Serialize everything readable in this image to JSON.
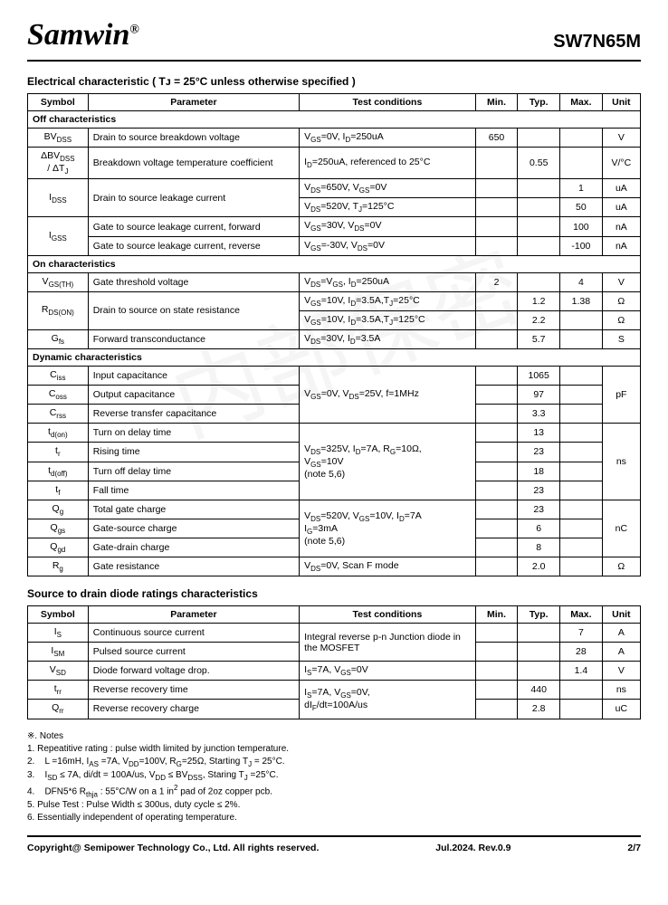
{
  "header": {
    "logo": "Samwin",
    "reg": "®",
    "partno": "SW7N65M"
  },
  "sec1_title": "Electrical characteristic ( Tᴊ = 25°C unless otherwise specified )",
  "cols1": [
    "Symbol",
    "Parameter",
    "Test conditions",
    "Min.",
    "Typ.",
    "Max.",
    "Unit"
  ],
  "off_hdr": "Off characteristics",
  "off": [
    {
      "sym": "BV_DSS",
      "param": "Drain to source breakdown voltage",
      "cond": "V_GS=0V, I_D=250uA",
      "min": "650",
      "typ": "",
      "max": "",
      "unit": "V"
    },
    {
      "sym": "ΔBV_DSS / ΔT_J",
      "param": "Breakdown voltage temperature coefficient",
      "cond": "I_D=250uA, referenced to 25°C",
      "min": "",
      "typ": "0.55",
      "max": "",
      "unit": "V/°C"
    },
    {
      "sym": "I_DSS",
      "param": "Drain to source leakage current",
      "cond": "V_DS=650V, V_GS=0V",
      "min": "",
      "typ": "",
      "max": "1",
      "unit": "uA",
      "rowspan": 2
    },
    {
      "cond": "V_DS=520V, T_J=125°C",
      "min": "",
      "typ": "",
      "max": "50",
      "unit": "uA"
    },
    {
      "sym": "I_GSS",
      "param": "Gate to source leakage current, forward",
      "cond": "V_GS=30V, V_DS=0V",
      "min": "",
      "typ": "",
      "max": "100",
      "unit": "nA",
      "symrowspan": 2
    },
    {
      "param": "Gate to source leakage current, reverse",
      "cond": "V_GS=-30V, V_DS=0V",
      "min": "",
      "typ": "",
      "max": "-100",
      "unit": "nA"
    }
  ],
  "on_hdr": "On characteristics",
  "on": [
    {
      "sym": "V_GS(TH)",
      "param": "Gate threshold voltage",
      "cond": "V_DS=V_GS, I_D=250uA",
      "min": "2",
      "typ": "",
      "max": "4",
      "unit": "V"
    },
    {
      "sym": "R_DS(ON)",
      "param": "Drain to source on state resistance",
      "cond": "V_GS=10V, I_D=3.5A,T_J=25°C",
      "min": "",
      "typ": "1.2",
      "max": "1.38",
      "unit": "Ω",
      "rowspan": 2
    },
    {
      "cond": "V_GS=10V, I_D=3.5A,T_J=125°C",
      "min": "",
      "typ": "2.2",
      "max": "",
      "unit": "Ω"
    },
    {
      "sym": "G_fs",
      "param": "Forward transconductance",
      "cond": "V_DS=30V, I_D=3.5A",
      "min": "",
      "typ": "5.7",
      "max": "",
      "unit": "S"
    }
  ],
  "dyn_hdr": "Dynamic characteristics",
  "dyn": [
    {
      "sym": "C_iss",
      "param": "Input capacitance",
      "cond": "V_GS=0V, V_DS=25V, f=1MHz",
      "min": "",
      "typ": "1065",
      "max": "",
      "unit": "pF",
      "condrowspan": 3,
      "unitrowspan": 3
    },
    {
      "sym": "C_oss",
      "param": "Output capacitance",
      "min": "",
      "typ": "97",
      "max": ""
    },
    {
      "sym": "C_rss",
      "param": "Reverse transfer capacitance",
      "min": "",
      "typ": "3.3",
      "max": ""
    },
    {
      "sym": "t_d(on)",
      "param": "Turn on delay time",
      "cond": "V_DS=325V, I_D=7A, R_G=10Ω, V_GS=10V (note 5,6)",
      "min": "",
      "typ": "13",
      "max": "",
      "unit": "ns",
      "condrowspan": 4,
      "unitrowspan": 4
    },
    {
      "sym": "t_r",
      "param": "Rising time",
      "min": "",
      "typ": "23",
      "max": ""
    },
    {
      "sym": "t_d(off)",
      "param": "Turn off delay time",
      "min": "",
      "typ": "18",
      "max": ""
    },
    {
      "sym": "t_f",
      "param": "Fall time",
      "min": "",
      "typ": "23",
      "max": ""
    },
    {
      "sym": "Q_g",
      "param": "Total gate charge",
      "cond": "V_DS=520V, V_GS=10V, I_D=7A I_G=3mA (note 5,6)",
      "min": "",
      "typ": "23",
      "max": "",
      "unit": "nC",
      "condrowspan": 3,
      "unitrowspan": 3
    },
    {
      "sym": "Q_gs",
      "param": "Gate-source charge",
      "min": "",
      "typ": "6",
      "max": ""
    },
    {
      "sym": "Q_gd",
      "param": "Gate-drain charge",
      "min": "",
      "typ": "8",
      "max": ""
    },
    {
      "sym": "R_g",
      "param": "Gate resistance",
      "cond": "V_DS=0V, Scan F mode",
      "min": "",
      "typ": "2.0",
      "max": "",
      "unit": "Ω"
    }
  ],
  "sec2_title": "Source to drain diode ratings characteristics",
  "diode": [
    {
      "sym": "I_S",
      "param": "Continuous source current",
      "cond": "Integral reverse p-n Junction diode in the MOSFET",
      "min": "",
      "typ": "",
      "max": "7",
      "unit": "A",
      "condrowspan": 2
    },
    {
      "sym": "I_SM",
      "param": "Pulsed source current",
      "min": "",
      "typ": "",
      "max": "28",
      "unit": "A"
    },
    {
      "sym": "V_SD",
      "param": "Diode forward voltage drop.",
      "cond": "I_S=7A, V_GS=0V",
      "min": "",
      "typ": "",
      "max": "1.4",
      "unit": "V"
    },
    {
      "sym": "t_rr",
      "param": "Reverse recovery time",
      "cond": "I_S=7A, V_GS=0V, dI_F/dt=100A/us",
      "min": "",
      "typ": "440",
      "max": "",
      "unit": "ns",
      "condrowspan": 2
    },
    {
      "sym": "Q_rr",
      "param": "Reverse recovery charge",
      "min": "",
      "typ": "2.8",
      "max": "",
      "unit": "uC"
    }
  ],
  "notes_title": "※. Notes",
  "notes": [
    "1.    Repeatitive rating : pulse width limited by junction temperature.",
    "2.    L =16mH, I_AS =7A, V_DD=100V, R_G=25Ω, Starting T_J = 25°C.",
    "3.    I_SD ≤ 7A, di/dt = 100A/us, V_DD ≤ BV_DSS, Staring T_J =25°C.",
    "4.    DFN5*6 R_thja : 55°C/W on a 1 in² pad of 2oz copper pcb.",
    "5.    Pulse Test : Pulse Width ≤ 300us, duty cycle ≤ 2%.",
    "6.    Essentially independent of operating temperature."
  ],
  "footer": {
    "left": "Copyright@ Semipower Technology Co., Ltd. All rights reserved.",
    "mid": "Jul.2024. Rev.0.9",
    "right": "2/7"
  }
}
